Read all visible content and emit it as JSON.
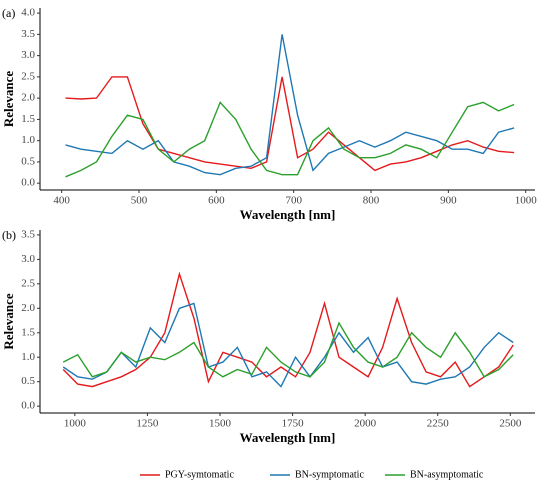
{
  "chart_data": [
    {
      "type": "line",
      "panel_label": "(a)",
      "x_label": "Wavelength [nm]",
      "y_label": "Relevance",
      "x": [
        405,
        425,
        445,
        465,
        485,
        505,
        525,
        545,
        565,
        585,
        605,
        625,
        645,
        665,
        685,
        705,
        725,
        745,
        765,
        785,
        805,
        825,
        845,
        865,
        885,
        905,
        925,
        945,
        965,
        985
      ],
      "series": [
        {
          "name": "PGY-symtomatic",
          "color": "#e41a1c",
          "values": [
            2.0,
            1.98,
            2.0,
            2.5,
            2.5,
            1.4,
            0.8,
            0.7,
            0.6,
            0.5,
            0.45,
            0.4,
            0.35,
            0.5,
            2.5,
            0.6,
            0.8,
            1.2,
            0.9,
            0.6,
            0.3,
            0.45,
            0.5,
            0.6,
            0.75,
            0.9,
            1.0,
            0.85,
            0.75,
            0.72
          ]
        },
        {
          "name": "BN-symptomatic",
          "color": "#1f78b4",
          "values": [
            0.9,
            0.8,
            0.75,
            0.7,
            1.0,
            0.8,
            1.0,
            0.5,
            0.4,
            0.25,
            0.2,
            0.35,
            0.4,
            0.6,
            3.5,
            1.6,
            0.3,
            0.7,
            0.85,
            1.0,
            0.85,
            1.0,
            1.2,
            1.1,
            1.0,
            0.8,
            0.8,
            0.7,
            1.2,
            1.3
          ]
        },
        {
          "name": "BN-asymptomatic",
          "color": "#2ca02c",
          "values": [
            0.15,
            0.3,
            0.5,
            1.1,
            1.6,
            1.5,
            0.8,
            0.5,
            0.8,
            1.0,
            1.9,
            1.5,
            0.8,
            0.3,
            0.2,
            0.2,
            1.0,
            1.3,
            0.8,
            0.6,
            0.6,
            0.7,
            0.9,
            0.8,
            0.6,
            1.2,
            1.8,
            1.9,
            1.7,
            1.85
          ]
        }
      ],
      "xlim": [
        372,
        1012
      ],
      "xticks": [
        400,
        500,
        600,
        700,
        800,
        900,
        1000
      ],
      "ylim": [
        -0.16,
        4.12
      ],
      "yticks": [
        {
          "value": 0,
          "label": "0.0"
        },
        0.5,
        {
          "value": 1,
          "label": "1.0"
        },
        1.5,
        {
          "value": 2,
          "label": "2.0"
        },
        2.5,
        {
          "value": 3,
          "label": "3.0"
        },
        3.5,
        {
          "value": 4,
          "label": "4.0"
        }
      ]
    },
    {
      "type": "line",
      "panel_label": "(b)",
      "x_label": "Wavelength [nm]",
      "y_label": "Relevance",
      "x": [
        960,
        1010,
        1060,
        1110,
        1160,
        1210,
        1260,
        1310,
        1360,
        1410,
        1460,
        1510,
        1560,
        1610,
        1660,
        1710,
        1760,
        1810,
        1860,
        1910,
        1960,
        2010,
        2060,
        2110,
        2160,
        2210,
        2260,
        2310,
        2360,
        2410,
        2460,
        2510
      ],
      "series": [
        {
          "color": "#e41a1c",
          "values": [
            0.75,
            0.45,
            0.4,
            0.5,
            0.6,
            0.75,
            1.0,
            1.5,
            2.7,
            1.8,
            0.5,
            1.1,
            1.0,
            0.9,
            0.6,
            0.8,
            0.6,
            1.1,
            2.1,
            1.0,
            0.8,
            0.6,
            1.2,
            2.2,
            1.3,
            0.7,
            0.6,
            0.9,
            0.4,
            0.6,
            0.8,
            1.25
          ]
        },
        {
          "color": "#1f78b4",
          "values": [
            0.8,
            0.6,
            0.55,
            0.7,
            1.1,
            0.8,
            1.6,
            1.3,
            2.0,
            2.1,
            0.8,
            0.9,
            1.2,
            0.6,
            0.7,
            0.4,
            1.0,
            0.6,
            1.0,
            1.5,
            1.1,
            1.4,
            0.8,
            0.9,
            0.5,
            0.45,
            0.55,
            0.6,
            0.8,
            1.2,
            1.5,
            1.3
          ]
        },
        {
          "color": "#2ca02c",
          "values": [
            0.9,
            1.05,
            0.6,
            0.7,
            1.1,
            0.9,
            1.0,
            0.95,
            1.1,
            1.3,
            0.8,
            0.6,
            0.75,
            0.65,
            1.2,
            0.9,
            0.7,
            0.6,
            0.9,
            1.7,
            1.2,
            0.9,
            0.8,
            1.0,
            1.5,
            1.2,
            1.0,
            1.5,
            1.1,
            0.6,
            0.75,
            1.05
          ]
        }
      ],
      "xlim": [
        880,
        2585
      ],
      "xticks": [
        1000,
        1250,
        1500,
        1750,
        2000,
        2250,
        2500
      ],
      "ylim": [
        -0.14,
        3.6
      ],
      "yticks": [
        {
          "value": 0,
          "label": "0.0"
        },
        0.5,
        {
          "value": 1,
          "label": "1.0"
        },
        1.5,
        {
          "value": 2,
          "label": "2.0"
        },
        2.5,
        {
          "value": 3,
          "label": "3.0"
        },
        3.5
      ]
    }
  ]
}
